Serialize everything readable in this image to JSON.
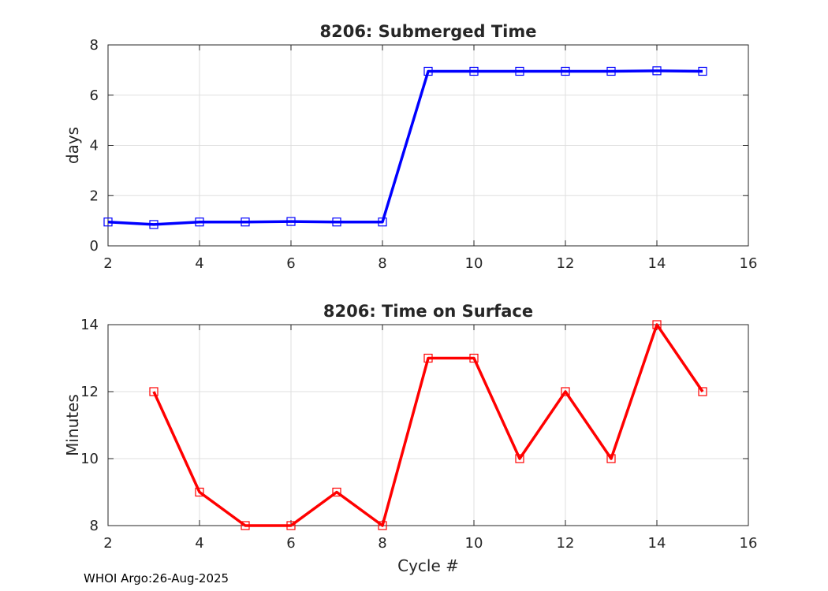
{
  "footer": "WHOI Argo:26-Aug-2025",
  "chart_data": [
    {
      "type": "line",
      "title": "8206: Submerged Time",
      "xlabel": "",
      "ylabel": "days",
      "xlim": [
        2,
        16
      ],
      "ylim": [
        0,
        8
      ],
      "xticks": [
        2,
        4,
        6,
        8,
        10,
        12,
        14,
        16
      ],
      "yticks": [
        0,
        2,
        4,
        6,
        8
      ],
      "grid": true,
      "color": "#0000ff",
      "marker": "square",
      "x": [
        2,
        3,
        4,
        5,
        6,
        7,
        8,
        9,
        10,
        11,
        12,
        13,
        14,
        15
      ],
      "y": [
        0.95,
        0.85,
        0.95,
        0.95,
        0.97,
        0.95,
        0.95,
        6.95,
        6.95,
        6.95,
        6.95,
        6.95,
        6.97,
        6.95
      ]
    },
    {
      "type": "line",
      "title": "8206: Time on Surface",
      "xlabel": "Cycle #",
      "ylabel": "Minutes",
      "xlim": [
        2,
        16
      ],
      "ylim": [
        8,
        14
      ],
      "xticks": [
        2,
        4,
        6,
        8,
        10,
        12,
        14,
        16
      ],
      "yticks": [
        8,
        10,
        12,
        14
      ],
      "grid": true,
      "color": "#ff0000",
      "marker": "square",
      "x": [
        3,
        4,
        5,
        6,
        7,
        8,
        9,
        10,
        11,
        12,
        13,
        14,
        15
      ],
      "y": [
        12,
        9,
        8,
        8,
        9,
        8,
        13,
        13,
        10,
        12,
        10,
        14,
        12
      ]
    }
  ]
}
